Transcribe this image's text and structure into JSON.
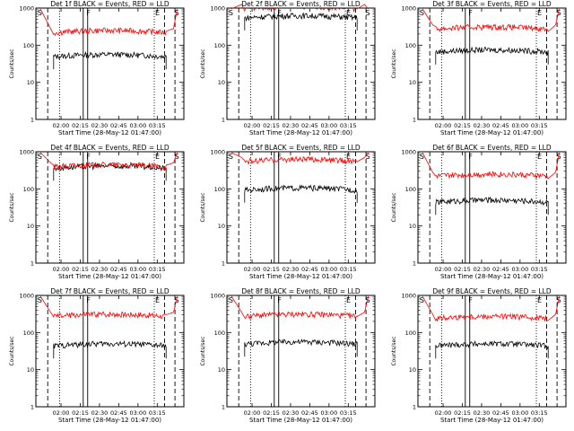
{
  "chart_data": [
    {
      "type": "line",
      "title": "Det 1f BLACK = Events, RED = LLD",
      "xlabel": "Start Time (28-May-12 01:47:00)",
      "ylabel": "Counts/sec",
      "ylim": [
        1,
        1000
      ],
      "yscale": "log",
      "ytick_labels": [
        "1",
        "10",
        "100",
        "1000"
      ],
      "xtick_labels": [
        "02:00",
        "02:15",
        "02:30",
        "02:45",
        "03:00",
        "03:15"
      ],
      "markers": {
        "left": "S",
        "right": "S",
        "f": "F",
        "e": "E"
      },
      "series": [
        {
          "color": "#000000",
          "level": 45
        },
        {
          "color": "#ff0000",
          "level": 200
        }
      ]
    },
    {
      "type": "line",
      "title": "Det 2f BLACK = Events, RED = LLD",
      "xlabel": "Start Time (28-May-12 01:47:00)",
      "ylabel": "Counts/sec",
      "ylim": [
        1,
        1000
      ],
      "yscale": "log",
      "ytick_labels": [
        "1",
        "10",
        "100",
        "1000"
      ],
      "xtick_labels": [
        "02:00",
        "02:15",
        "02:30",
        "02:45",
        "03:00",
        "03:15"
      ],
      "markers": {
        "left": "S",
        "right": "S",
        "f": "F",
        "e": "E"
      },
      "series": [
        {
          "color": "#000000",
          "level": 500
        },
        {
          "color": "#ff0000",
          "level": 900
        }
      ]
    },
    {
      "type": "line",
      "title": "Det 3f BLACK = Events, RED = LLD",
      "xlabel": "Start Time (28-May-12 01:47:00)",
      "ylabel": "Counts/sec",
      "ylim": [
        1,
        1000
      ],
      "yscale": "log",
      "ytick_labels": [
        "1",
        "10",
        "100",
        "1000"
      ],
      "xtick_labels": [
        "02:00",
        "02:15",
        "02:30",
        "02:45",
        "03:00",
        "03:15"
      ],
      "markers": {
        "left": "S",
        "right": "S",
        "f": "F",
        "e": "E"
      },
      "series": [
        {
          "color": "#000000",
          "level": 60
        },
        {
          "color": "#ff0000",
          "level": 250
        }
      ]
    },
    {
      "type": "line",
      "title": "Det 4f BLACK = Events, RED = LLD",
      "xlabel": "Start Time (28-May-12 01:47:00)",
      "ylabel": "Counts/sec",
      "ylim": [
        1,
        1000
      ],
      "yscale": "log",
      "ytick_labels": [
        "1",
        "10",
        "100",
        "1000"
      ],
      "xtick_labels": [
        "02:00",
        "02:15",
        "02:30",
        "02:45",
        "03:00",
        "03:15"
      ],
      "markers": {
        "left": "S",
        "right": "S",
        "f": "F",
        "e": "E"
      },
      "series": [
        {
          "color": "#000000",
          "level": 330
        },
        {
          "color": "#ff0000",
          "level": 360
        }
      ]
    },
    {
      "type": "line",
      "title": "Det 5f BLACK = Events, RED = LLD",
      "xlabel": "Start Time (28-May-12 01:47:00)",
      "ylabel": "Counts/sec",
      "ylim": [
        1,
        1000
      ],
      "yscale": "log",
      "ytick_labels": [
        "1",
        "10",
        "100",
        "1000"
      ],
      "xtick_labels": [
        "02:00",
        "02:15",
        "02:30",
        "02:45",
        "03:00",
        "03:15"
      ],
      "markers": {
        "left": "S",
        "right": "S",
        "f": "F",
        "e": "E"
      },
      "series": [
        {
          "color": "#000000",
          "level": 85
        },
        {
          "color": "#ff0000",
          "level": 500
        }
      ]
    },
    {
      "type": "line",
      "title": "Det 6f BLACK = Events, RED = LLD",
      "xlabel": "Start Time (28-May-12 01:47:00)",
      "ylabel": "Counts/sec",
      "ylim": [
        1,
        1000
      ],
      "yscale": "log",
      "ytick_labels": [
        "1",
        "10",
        "100",
        "1000"
      ],
      "xtick_labels": [
        "02:00",
        "02:15",
        "02:30",
        "02:45",
        "03:00",
        "03:15"
      ],
      "markers": {
        "left": "S",
        "right": "S",
        "f": "F",
        "e": "E"
      },
      "series": [
        {
          "color": "#000000",
          "level": 40
        },
        {
          "color": "#ff0000",
          "level": 200
        }
      ]
    },
    {
      "type": "line",
      "title": "Det 7f BLACK = Events, RED = LLD",
      "xlabel": "Start Time (28-May-12 01:47:00)",
      "ylabel": "Counts/sec",
      "ylim": [
        1,
        1000
      ],
      "yscale": "log",
      "ytick_labels": [
        "1",
        "10",
        "100",
        "1000"
      ],
      "xtick_labels": [
        "02:00",
        "02:15",
        "02:30",
        "02:45",
        "03:00",
        "03:15"
      ],
      "markers": {
        "left": "S",
        "right": "S",
        "f": "F",
        "e": "E"
      },
      "series": [
        {
          "color": "#000000",
          "level": 40
        },
        {
          "color": "#ff0000",
          "level": 250
        }
      ]
    },
    {
      "type": "line",
      "title": "Det 8f BLACK = Events, RED = LLD",
      "xlabel": "Start Time (28-May-12 01:47:00)",
      "ylabel": "Counts/sec",
      "ylim": [
        1,
        1000
      ],
      "yscale": "log",
      "ytick_labels": [
        "1",
        "10",
        "100",
        "1000"
      ],
      "xtick_labels": [
        "02:00",
        "02:15",
        "02:30",
        "02:45",
        "03:00",
        "03:15"
      ],
      "markers": {
        "left": "S",
        "right": "S",
        "f": "F",
        "e": "E"
      },
      "series": [
        {
          "color": "#000000",
          "level": 45
        },
        {
          "color": "#ff0000",
          "level": 250
        }
      ]
    },
    {
      "type": "line",
      "title": "Det 9f BLACK = Events, RED = LLD",
      "xlabel": "Start Time (28-May-12 01:47:00)",
      "ylabel": "Counts/sec",
      "ylim": [
        1,
        1000
      ],
      "yscale": "log",
      "ytick_labels": [
        "1",
        "10",
        "100",
        "1000"
      ],
      "xtick_labels": [
        "02:00",
        "02:15",
        "02:30",
        "02:45",
        "03:00",
        "03:15"
      ],
      "markers": {
        "left": "S",
        "right": "S",
        "f": "F",
        "e": "E"
      },
      "series": [
        {
          "color": "#000000",
          "level": 40
        },
        {
          "color": "#ff0000",
          "level": 220
        }
      ]
    }
  ]
}
